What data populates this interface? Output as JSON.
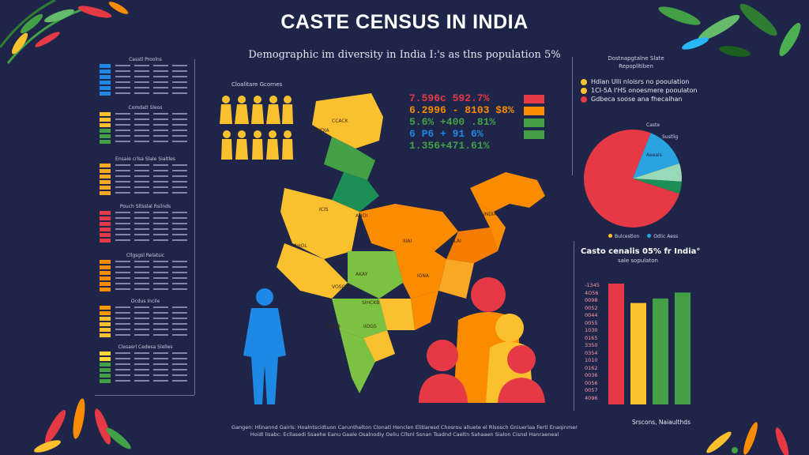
{
  "header": {
    "title": "CASTE CENSUS IN INDIA",
    "subtitle": "Demographic im diversity in India I:'s as tlns population 5%"
  },
  "left_panel": {
    "tables": [
      {
        "header": "Casstl Proolns",
        "colors": [
          "#1e88e5",
          "#1e88e5",
          "#1e88e5",
          "#1e88e5",
          "#1e88e5",
          "#1e88e5"
        ]
      },
      {
        "header": "Comdatl Sleos",
        "colors": [
          "#fbc02d",
          "#fbc02d",
          "#fbc02d",
          "#43a047",
          "#43a047",
          "#43a047"
        ]
      },
      {
        "header": "Ensaie crlsa Slale Sialtles",
        "colors": [
          "#f9a825",
          "#f9a825",
          "#f9a825",
          "#f9a825",
          "#f9a825",
          "#f9a825"
        ]
      },
      {
        "header": "Pouch Sltsslal Rsilnds",
        "colors": [
          "#e53946",
          "#e53946",
          "#e53946",
          "#e53946",
          "#e53946",
          "#e53946"
        ]
      },
      {
        "header": "Cllgsgsl Relatsic",
        "colors": [
          "#fb8c00",
          "#fb8c00",
          "#fb8c00",
          "#fb8c00",
          "#fb8c00",
          "#fb8c00"
        ]
      },
      {
        "header": "Ocdus Incile",
        "colors": [
          "#ff9800",
          "#ff9800",
          "#fbc02d",
          "#fbc02d",
          "#fbc02d",
          "#fbc02d"
        ]
      },
      {
        "header": "Clesasrl Cedesa Slelles",
        "colors": [
          "#fdd835",
          "#fdd835",
          "#43a047",
          "#43a047",
          "#43a047",
          "#43a047"
        ]
      }
    ]
  },
  "people": {
    "label": "Cloalitare Gcornes"
  },
  "map": {
    "labels": [
      "CCACK",
      "YNDIA",
      "ICIS",
      "AHOI",
      "AHOL",
      "AKAY",
      "IGNA",
      "IOCBB",
      "IIOGS",
      "SIHCKB",
      "ULAI",
      "IIIAI",
      "INDIA",
      "VOSOKE"
    ]
  },
  "stats": {
    "lines": [
      "7.596c 592.7%",
      "6.2996 - 8103 $8%",
      "5.6% +400 .81%",
      "6 P6 + 91 6%",
      "1.356+471.61%"
    ],
    "colors": [
      "#e53946",
      "#fb8c00",
      "#43a047",
      "#1e88e5",
      "#43a047"
    ],
    "legend_colors": [
      "#e53946",
      "#fb8c00",
      "#43a047",
      "#43a047"
    ]
  },
  "pie_panel": {
    "title": "Dostnapgtalne Slate",
    "title2": "Repoplltiben",
    "legend": [
      {
        "label": "Hdian Ulli nloisrs no pooulation",
        "color": "#fbc02d"
      },
      {
        "label": "1CI-5A I'HS onoesmere pooulaton",
        "color": "#fbc02d"
      },
      {
        "label": "Gdbeca soose ana fhecalhan",
        "color": "#e53946"
      }
    ],
    "slice_labels": [
      "Caste",
      "Sustlig",
      "Aeeals"
    ],
    "bottom_legend": [
      "Bulcestlon",
      "Odlic Aess"
    ]
  },
  "chart_data": {
    "type": "bar",
    "title": "Casto cenalis 05% fr India°",
    "subtitle": "sale sopulaton",
    "categories": [
      "",
      "",
      "",
      ""
    ],
    "values": [
      162,
      136,
      142,
      150
    ],
    "colors": [
      "#e53946",
      "#fbc02d",
      "#43a047",
      "#43a047"
    ],
    "ytick_labels": [
      "-1345",
      "4O56",
      "0098",
      "0052",
      "0044",
      "0055",
      "1030",
      "0165",
      "3350",
      "0354",
      "1010",
      "0162",
      "0036",
      "0056",
      "0057",
      "4096"
    ],
    "ylim": [
      0,
      180
    ]
  },
  "pie_data": {
    "values": [
      76,
      14,
      6,
      4
    ],
    "colors": [
      "#e53946",
      "#29a3e0",
      "#9ad9b8",
      "#1b8f55"
    ]
  },
  "footer": {
    "line1": "Gangen: Hlinannd Gairls: Hoalntscidtuon Carunthelton Clonatl Henclen Elitlaresd Chosrou alluete el Rlsosch Gniuerlaa Fertl Enaqinmer",
    "line2": "Hoidl lisabc: Ecllasedi Ssaehe Eanu Gaale Osalnodiy Oeliu Cllsnl Ssnan Tsadnd Caeltn Sahaaen Sialon Cisnsl Hanraeneal",
    "source": "Srscons, Naiaulthds"
  }
}
